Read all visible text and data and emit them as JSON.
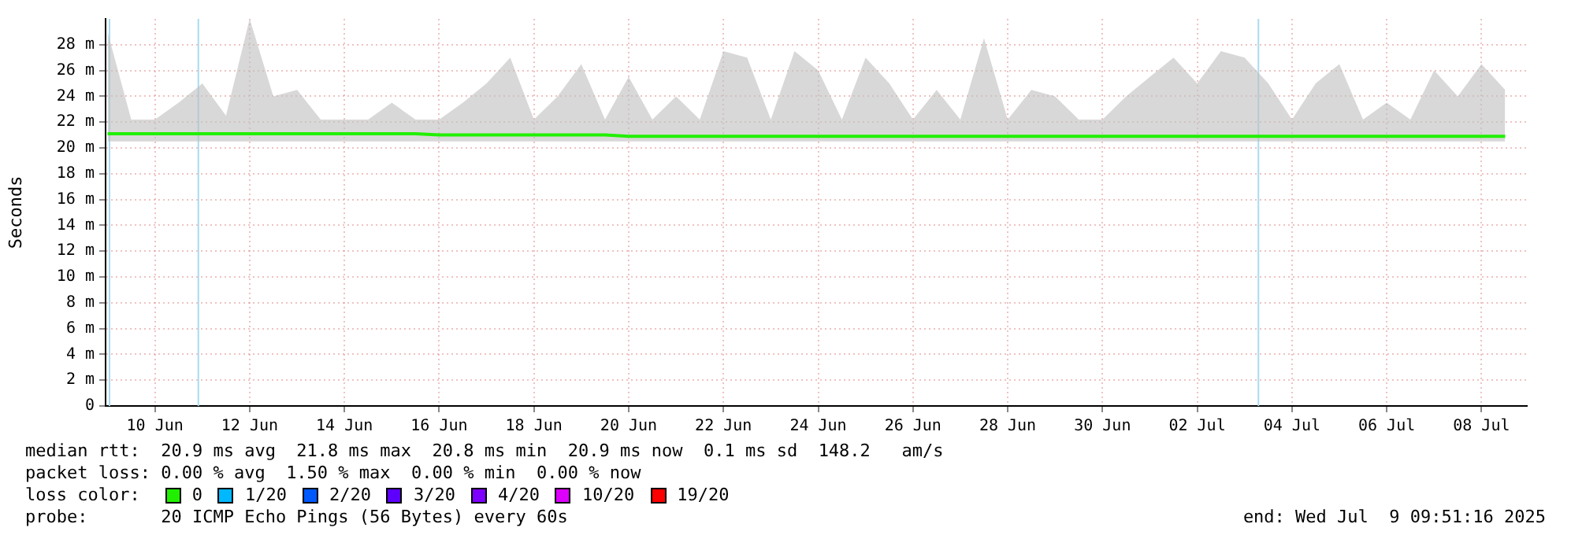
{
  "chart_data": {
    "type": "line",
    "ylabel": "Seconds",
    "legend_title": "loss color:",
    "legend": "bottom",
    "grid": true,
    "line_style": "solid",
    "marker": "none",
    "xlim": [
      "2025-06-08T23:00",
      "2025-07-08T23:00"
    ],
    "xticks": [
      {
        "value": "2025-06-10",
        "label": "10 Jun"
      },
      {
        "value": "2025-06-12",
        "label": "12 Jun"
      },
      {
        "value": "2025-06-14",
        "label": "14 Jun"
      },
      {
        "value": "2025-06-16",
        "label": "16 Jun"
      },
      {
        "value": "2025-06-18",
        "label": "18 Jun"
      },
      {
        "value": "2025-06-20",
        "label": "20 Jun"
      },
      {
        "value": "2025-06-22",
        "label": "22 Jun"
      },
      {
        "value": "2025-06-24",
        "label": "24 Jun"
      },
      {
        "value": "2025-06-26",
        "label": "26 Jun"
      },
      {
        "value": "2025-06-28",
        "label": "28 Jun"
      },
      {
        "value": "2025-06-30",
        "label": "30 Jun"
      },
      {
        "value": "2025-07-02",
        "label": "02 Jul"
      },
      {
        "value": "2025-07-04",
        "label": "04 Jul"
      },
      {
        "value": "2025-07-06",
        "label": "06 Jul"
      },
      {
        "value": "2025-07-08",
        "label": "08 Jul"
      }
    ],
    "ylim": [
      0,
      30
    ],
    "yticks": [
      0,
      {
        "value": 2,
        "label": "2 m"
      },
      {
        "value": 4,
        "label": "4 m"
      },
      {
        "value": 6,
        "label": "6 m"
      },
      {
        "value": 8,
        "label": "8 m"
      },
      {
        "value": 10,
        "label": "10 m"
      },
      {
        "value": 12,
        "label": "12 m"
      },
      {
        "value": 14,
        "label": "14 m"
      },
      {
        "value": 16,
        "label": "16 m"
      },
      {
        "value": 18,
        "label": "18 m"
      },
      {
        "value": 20,
        "label": "20 m"
      },
      {
        "value": 22,
        "label": "22 m"
      },
      {
        "value": 24,
        "label": "24 m"
      },
      {
        "value": 26,
        "label": "26 m"
      },
      {
        "value": 28,
        "label": "28 m"
      }
    ],
    "x": [
      "2025-06-09T00:00",
      "2025-06-09T12:00",
      "2025-06-10T00:00",
      "2025-06-10T12:00",
      "2025-06-11T00:00",
      "2025-06-11T12:00",
      "2025-06-12T00:00",
      "2025-06-12T12:00",
      "2025-06-13T00:00",
      "2025-06-13T12:00",
      "2025-06-14T00:00",
      "2025-06-14T12:00",
      "2025-06-15T00:00",
      "2025-06-15T12:00",
      "2025-06-16T00:00",
      "2025-06-16T12:00",
      "2025-06-17T00:00",
      "2025-06-17T12:00",
      "2025-06-18T00:00",
      "2025-06-18T12:00",
      "2025-06-19T00:00",
      "2025-06-19T12:00",
      "2025-06-20T00:00",
      "2025-06-20T12:00",
      "2025-06-21T00:00",
      "2025-06-21T12:00",
      "2025-06-22T00:00",
      "2025-06-22T12:00",
      "2025-06-23T00:00",
      "2025-06-23T12:00",
      "2025-06-24T00:00",
      "2025-06-24T12:00",
      "2025-06-25T00:00",
      "2025-06-25T12:00",
      "2025-06-26T00:00",
      "2025-06-26T12:00",
      "2025-06-27T00:00",
      "2025-06-27T12:00",
      "2025-06-28T00:00",
      "2025-06-28T12:00",
      "2025-06-29T00:00",
      "2025-06-29T12:00",
      "2025-06-30T00:00",
      "2025-06-30T12:00",
      "2025-07-01T00:00",
      "2025-07-01T12:00",
      "2025-07-02T00:00",
      "2025-07-02T12:00",
      "2025-07-03T00:00",
      "2025-07-03T12:00",
      "2025-07-04T00:00",
      "2025-07-04T12:00",
      "2025-07-05T00:00",
      "2025-07-05T12:00",
      "2025-07-06T00:00",
      "2025-07-06T12:00",
      "2025-07-07T00:00",
      "2025-07-07T12:00",
      "2025-07-08T00:00",
      "2025-07-08T12:00"
    ],
    "series": [
      {
        "name": "0",
        "color": "#20f000",
        "values": [
          21.1,
          21.1,
          21.1,
          21.1,
          21.1,
          21.1,
          21.1,
          21.1,
          21.1,
          21.1,
          21.1,
          21.1,
          21.1,
          21.1,
          21.0,
          21.0,
          21.0,
          21.0,
          21.0,
          21.0,
          21.0,
          21.0,
          20.9,
          20.9,
          20.9,
          20.9,
          20.9,
          20.9,
          20.9,
          20.9,
          20.9,
          20.9,
          20.9,
          20.9,
          20.9,
          20.9,
          20.9,
          20.9,
          20.9,
          20.9,
          20.9,
          20.9,
          20.9,
          20.9,
          20.9,
          20.9,
          20.9,
          20.9,
          20.9,
          20.9,
          20.9,
          20.9,
          20.9,
          20.9,
          20.9,
          20.9,
          20.9,
          20.9,
          20.9,
          20.9
        ],
        "lower": [
          20.5,
          20.5,
          20.5,
          20.5,
          20.5,
          20.5,
          20.5,
          20.5,
          20.5,
          20.5,
          20.5,
          20.5,
          20.5,
          20.5,
          20.5,
          20.5,
          20.5,
          20.5,
          20.5,
          20.5,
          20.5,
          20.5,
          20.5,
          20.5,
          20.5,
          20.5,
          20.5,
          20.5,
          20.5,
          20.5,
          20.5,
          20.5,
          20.5,
          20.5,
          20.5,
          20.5,
          20.5,
          20.5,
          20.5,
          20.5,
          20.5,
          20.5,
          20.5,
          20.5,
          20.5,
          20.5,
          20.5,
          20.5,
          20.5,
          20.5,
          20.5,
          20.5,
          20.5,
          20.5,
          20.5,
          20.5,
          20.5,
          20.5,
          20.5,
          20.5
        ],
        "upper": [
          29,
          22.2,
          22.2,
          23.5,
          25,
          22.5,
          30,
          24,
          24.5,
          22.2,
          22.2,
          22.2,
          23.5,
          22.2,
          22.2,
          23.5,
          25,
          27,
          22.2,
          24,
          26.5,
          22.2,
          25.5,
          22.2,
          24,
          22.2,
          27.5,
          27,
          22.2,
          27.5,
          26,
          22.2,
          27,
          25,
          22.2,
          24.5,
          22.2,
          28.5,
          22.2,
          24.5,
          24,
          22.2,
          22.2,
          24,
          25.5,
          27,
          25,
          27.5,
          27,
          25,
          22.2,
          25,
          26.5,
          22.2,
          23.5,
          22.2,
          26,
          24,
          26.5,
          24.5
        ]
      },
      {
        "name": "1/20",
        "color": "#00b8ff",
        "values": [
          null,
          null,
          null,
          null,
          null,
          null,
          null,
          null,
          null,
          null,
          null,
          null,
          null,
          null,
          null,
          null,
          null,
          null,
          null,
          null,
          null,
          null,
          null,
          null,
          null,
          null,
          null,
          null,
          null,
          null,
          null,
          null,
          null,
          null,
          null,
          null,
          null,
          null,
          null,
          null,
          null,
          null,
          null,
          null,
          null,
          null,
          null,
          null,
          null,
          null,
          null,
          null,
          null,
          null,
          null,
          null,
          null,
          null,
          null,
          null
        ]
      },
      {
        "name": "2/20",
        "color": "#0059ff",
        "values": [
          null,
          null,
          null,
          null,
          null,
          null,
          null,
          null,
          null,
          null,
          null,
          null,
          null,
          null,
          null,
          null,
          null,
          null,
          null,
          null,
          null,
          null,
          null,
          null,
          null,
          null,
          null,
          null,
          null,
          null,
          null,
          null,
          null,
          null,
          null,
          null,
          null,
          null,
          null,
          null,
          null,
          null,
          null,
          null,
          null,
          null,
          null,
          null,
          null,
          null,
          null,
          null,
          null,
          null,
          null,
          null,
          null,
          null,
          null,
          null
        ]
      },
      {
        "name": "3/20",
        "color": "#5e00ff",
        "values": [
          null,
          null,
          null,
          null,
          null,
          null,
          null,
          null,
          null,
          null,
          null,
          null,
          null,
          null,
          null,
          null,
          null,
          null,
          null,
          null,
          null,
          null,
          null,
          null,
          null,
          null,
          null,
          null,
          null,
          null,
          null,
          null,
          null,
          null,
          null,
          null,
          null,
          null,
          null,
          null,
          null,
          null,
          null,
          null,
          null,
          null,
          null,
          null,
          null,
          null,
          null,
          null,
          null,
          null,
          null,
          null,
          null,
          null,
          null,
          null
        ]
      },
      {
        "name": "4/20",
        "color": "#7e00ff",
        "values": [
          null,
          null,
          null,
          null,
          null,
          null,
          null,
          null,
          null,
          null,
          null,
          null,
          null,
          null,
          null,
          null,
          null,
          null,
          null,
          null,
          null,
          null,
          null,
          null,
          null,
          null,
          null,
          null,
          null,
          null,
          null,
          null,
          null,
          null,
          null,
          null,
          null,
          null,
          null,
          null,
          null,
          null,
          null,
          null,
          null,
          null,
          null,
          null,
          null,
          null,
          null,
          null,
          null,
          null,
          null,
          null,
          null,
          null,
          null,
          null
        ]
      },
      {
        "name": "10/20",
        "color": "#dd00ff",
        "values": [
          null,
          null,
          null,
          null,
          null,
          null,
          null,
          null,
          null,
          null,
          null,
          null,
          null,
          null,
          null,
          null,
          null,
          null,
          null,
          null,
          null,
          null,
          null,
          null,
          null,
          null,
          null,
          null,
          null,
          null,
          null,
          null,
          null,
          null,
          null,
          null,
          null,
          null,
          null,
          null,
          null,
          null,
          null,
          null,
          null,
          null,
          null,
          null,
          null,
          null,
          null,
          null,
          null,
          null,
          null,
          null,
          null,
          null,
          null,
          null
        ]
      },
      {
        "name": "19/20",
        "color": "#ff0000",
        "values": [
          null,
          null,
          null,
          null,
          null,
          null,
          null,
          null,
          null,
          null,
          null,
          null,
          null,
          null,
          null,
          null,
          null,
          null,
          null,
          null,
          null,
          null,
          null,
          null,
          null,
          null,
          null,
          null,
          null,
          null,
          null,
          null,
          null,
          null,
          null,
          null,
          null,
          null,
          null,
          null,
          null,
          null,
          null,
          null,
          null,
          null,
          null,
          null,
          null,
          null,
          null,
          null,
          null,
          null,
          null,
          null,
          null,
          null,
          null,
          null
        ]
      }
    ],
    "ref_lines": [
      {
        "axis": "x",
        "value": "2025-06-09T01:00",
        "color": "#a8dcf0"
      },
      {
        "axis": "x",
        "value": "2025-06-10T22:00",
        "color": "#a8dcf0"
      },
      {
        "axis": "x",
        "value": "2025-07-03T07:00",
        "color": "#a8dcf0"
      }
    ],
    "annotations": [
      "median rtt:  20.9 ms avg  21.8 ms max  20.8 ms min  20.9 ms now  0.1 ms sd  148.2   am/s",
      "packet loss: 0.00 % avg  1.50 % max  0.00 % min  0.00 % now",
      "probe:       20 ICMP Echo Pings (56 Bytes) every 60s",
      "end: Wed Jul  9 09:51:16 2025"
    ]
  }
}
